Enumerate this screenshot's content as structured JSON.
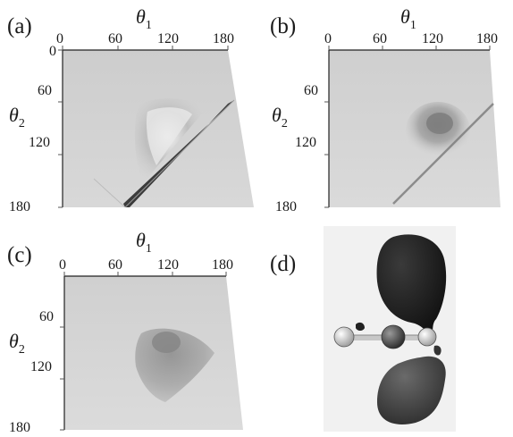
{
  "panels": [
    {
      "label": "(a)",
      "xlabel": "θ",
      "xlabel_sub": "1",
      "ylabel": "θ",
      "ylabel_sub": "2",
      "x_ticks": [
        "0",
        "60",
        "120",
        "180"
      ],
      "y_ticks": [
        "0",
        "60",
        "120",
        "180"
      ]
    },
    {
      "label": "(b)",
      "xlabel": "θ",
      "xlabel_sub": "1",
      "ylabel": "θ",
      "ylabel_sub": "2",
      "x_ticks": [
        "0",
        "60",
        "120",
        "180"
      ],
      "y_ticks": [
        "60",
        "120",
        "180"
      ]
    },
    {
      "label": "(c)",
      "xlabel": "θ",
      "xlabel_sub": "1",
      "ylabel": "θ",
      "ylabel_sub": "2",
      "x_ticks": [
        "0",
        "60",
        "120",
        "180"
      ],
      "y_ticks": [
        "60",
        "120",
        "180"
      ]
    },
    {
      "label": "(d)"
    }
  ]
}
